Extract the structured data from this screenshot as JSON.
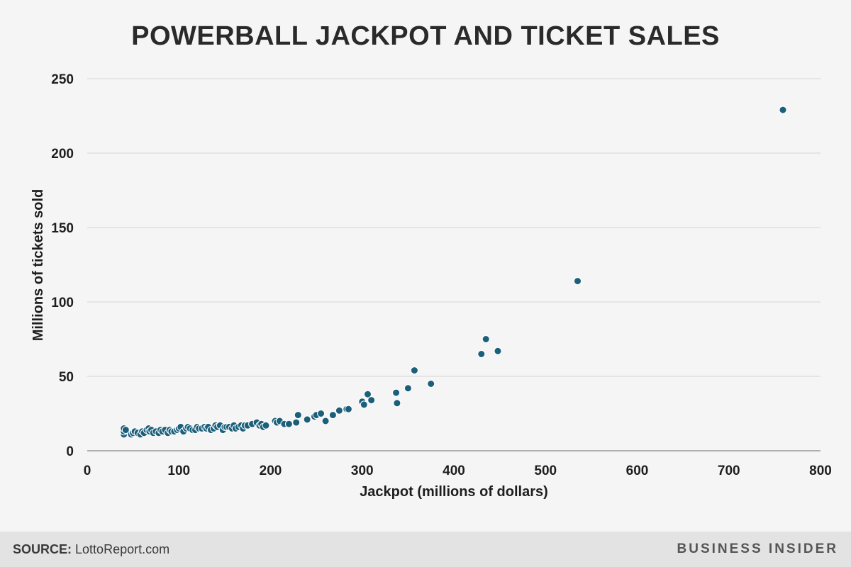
{
  "chart_data": {
    "type": "scatter",
    "title": "POWERBALL JACKPOT AND TICKET SALES",
    "xlabel": "Jackpot (millions of dollars)",
    "ylabel": "Millions of tickets sold",
    "xlim": [
      0,
      800
    ],
    "ylim": [
      0,
      250
    ],
    "xticks": [
      "0",
      "100",
      "200",
      "300",
      "400",
      "500",
      "600",
      "700",
      "800"
    ],
    "yticks": [
      "0",
      "50",
      "100",
      "150",
      "200",
      "250"
    ],
    "grid": "horizontal",
    "points": [
      [
        40,
        11
      ],
      [
        40,
        13
      ],
      [
        40,
        15
      ],
      [
        42,
        14
      ],
      [
        48,
        11
      ],
      [
        50,
        12
      ],
      [
        52,
        13
      ],
      [
        55,
        12
      ],
      [
        58,
        11
      ],
      [
        60,
        13
      ],
      [
        62,
        12
      ],
      [
        65,
        14
      ],
      [
        67,
        15
      ],
      [
        68,
        13
      ],
      [
        70,
        14
      ],
      [
        72,
        12
      ],
      [
        75,
        13
      ],
      [
        78,
        12
      ],
      [
        80,
        14
      ],
      [
        82,
        13
      ],
      [
        85,
        14
      ],
      [
        88,
        12
      ],
      [
        90,
        14
      ],
      [
        92,
        13
      ],
      [
        95,
        13
      ],
      [
        98,
        14
      ],
      [
        100,
        15
      ],
      [
        102,
        16
      ],
      [
        105,
        13
      ],
      [
        108,
        15
      ],
      [
        110,
        16
      ],
      [
        112,
        15
      ],
      [
        115,
        14
      ],
      [
        118,
        14
      ],
      [
        120,
        16
      ],
      [
        122,
        15
      ],
      [
        125,
        15
      ],
      [
        128,
        16
      ],
      [
        130,
        15
      ],
      [
        132,
        16
      ],
      [
        135,
        14
      ],
      [
        138,
        15
      ],
      [
        140,
        17
      ],
      [
        142,
        16
      ],
      [
        145,
        17
      ],
      [
        148,
        14
      ],
      [
        150,
        16
      ],
      [
        152,
        16
      ],
      [
        155,
        16
      ],
      [
        158,
        15
      ],
      [
        160,
        17
      ],
      [
        162,
        15
      ],
      [
        165,
        16
      ],
      [
        168,
        17
      ],
      [
        170,
        15
      ],
      [
        172,
        17
      ],
      [
        175,
        17
      ],
      [
        180,
        18
      ],
      [
        185,
        19
      ],
      [
        188,
        17
      ],
      [
        190,
        18
      ],
      [
        192,
        16
      ],
      [
        195,
        17
      ],
      [
        205,
        20
      ],
      [
        207,
        19
      ],
      [
        210,
        20
      ],
      [
        215,
        18
      ],
      [
        220,
        18
      ],
      [
        228,
        19
      ],
      [
        230,
        24
      ],
      [
        240,
        21
      ],
      [
        248,
        23
      ],
      [
        250,
        24
      ],
      [
        255,
        25
      ],
      [
        260,
        20
      ],
      [
        268,
        24
      ],
      [
        275,
        27
      ],
      [
        283,
        28
      ],
      [
        285,
        28
      ],
      [
        300,
        33
      ],
      [
        302,
        31
      ],
      [
        306,
        38
      ],
      [
        310,
        34
      ],
      [
        337,
        39
      ],
      [
        338,
        32
      ],
      [
        350,
        42
      ],
      [
        357,
        54
      ],
      [
        375,
        45
      ],
      [
        430,
        65
      ],
      [
        435,
        75
      ],
      [
        448,
        67
      ],
      [
        535,
        114
      ],
      [
        759,
        229
      ]
    ]
  },
  "footer": {
    "source_prefix": "SOURCE:",
    "source_text": "LottoReport.com",
    "brand": "BUSINESS INSIDER"
  },
  "colors": {
    "point": "#1c5f7b",
    "background": "#f5f5f5",
    "footer_bg": "#e3e3e3"
  }
}
